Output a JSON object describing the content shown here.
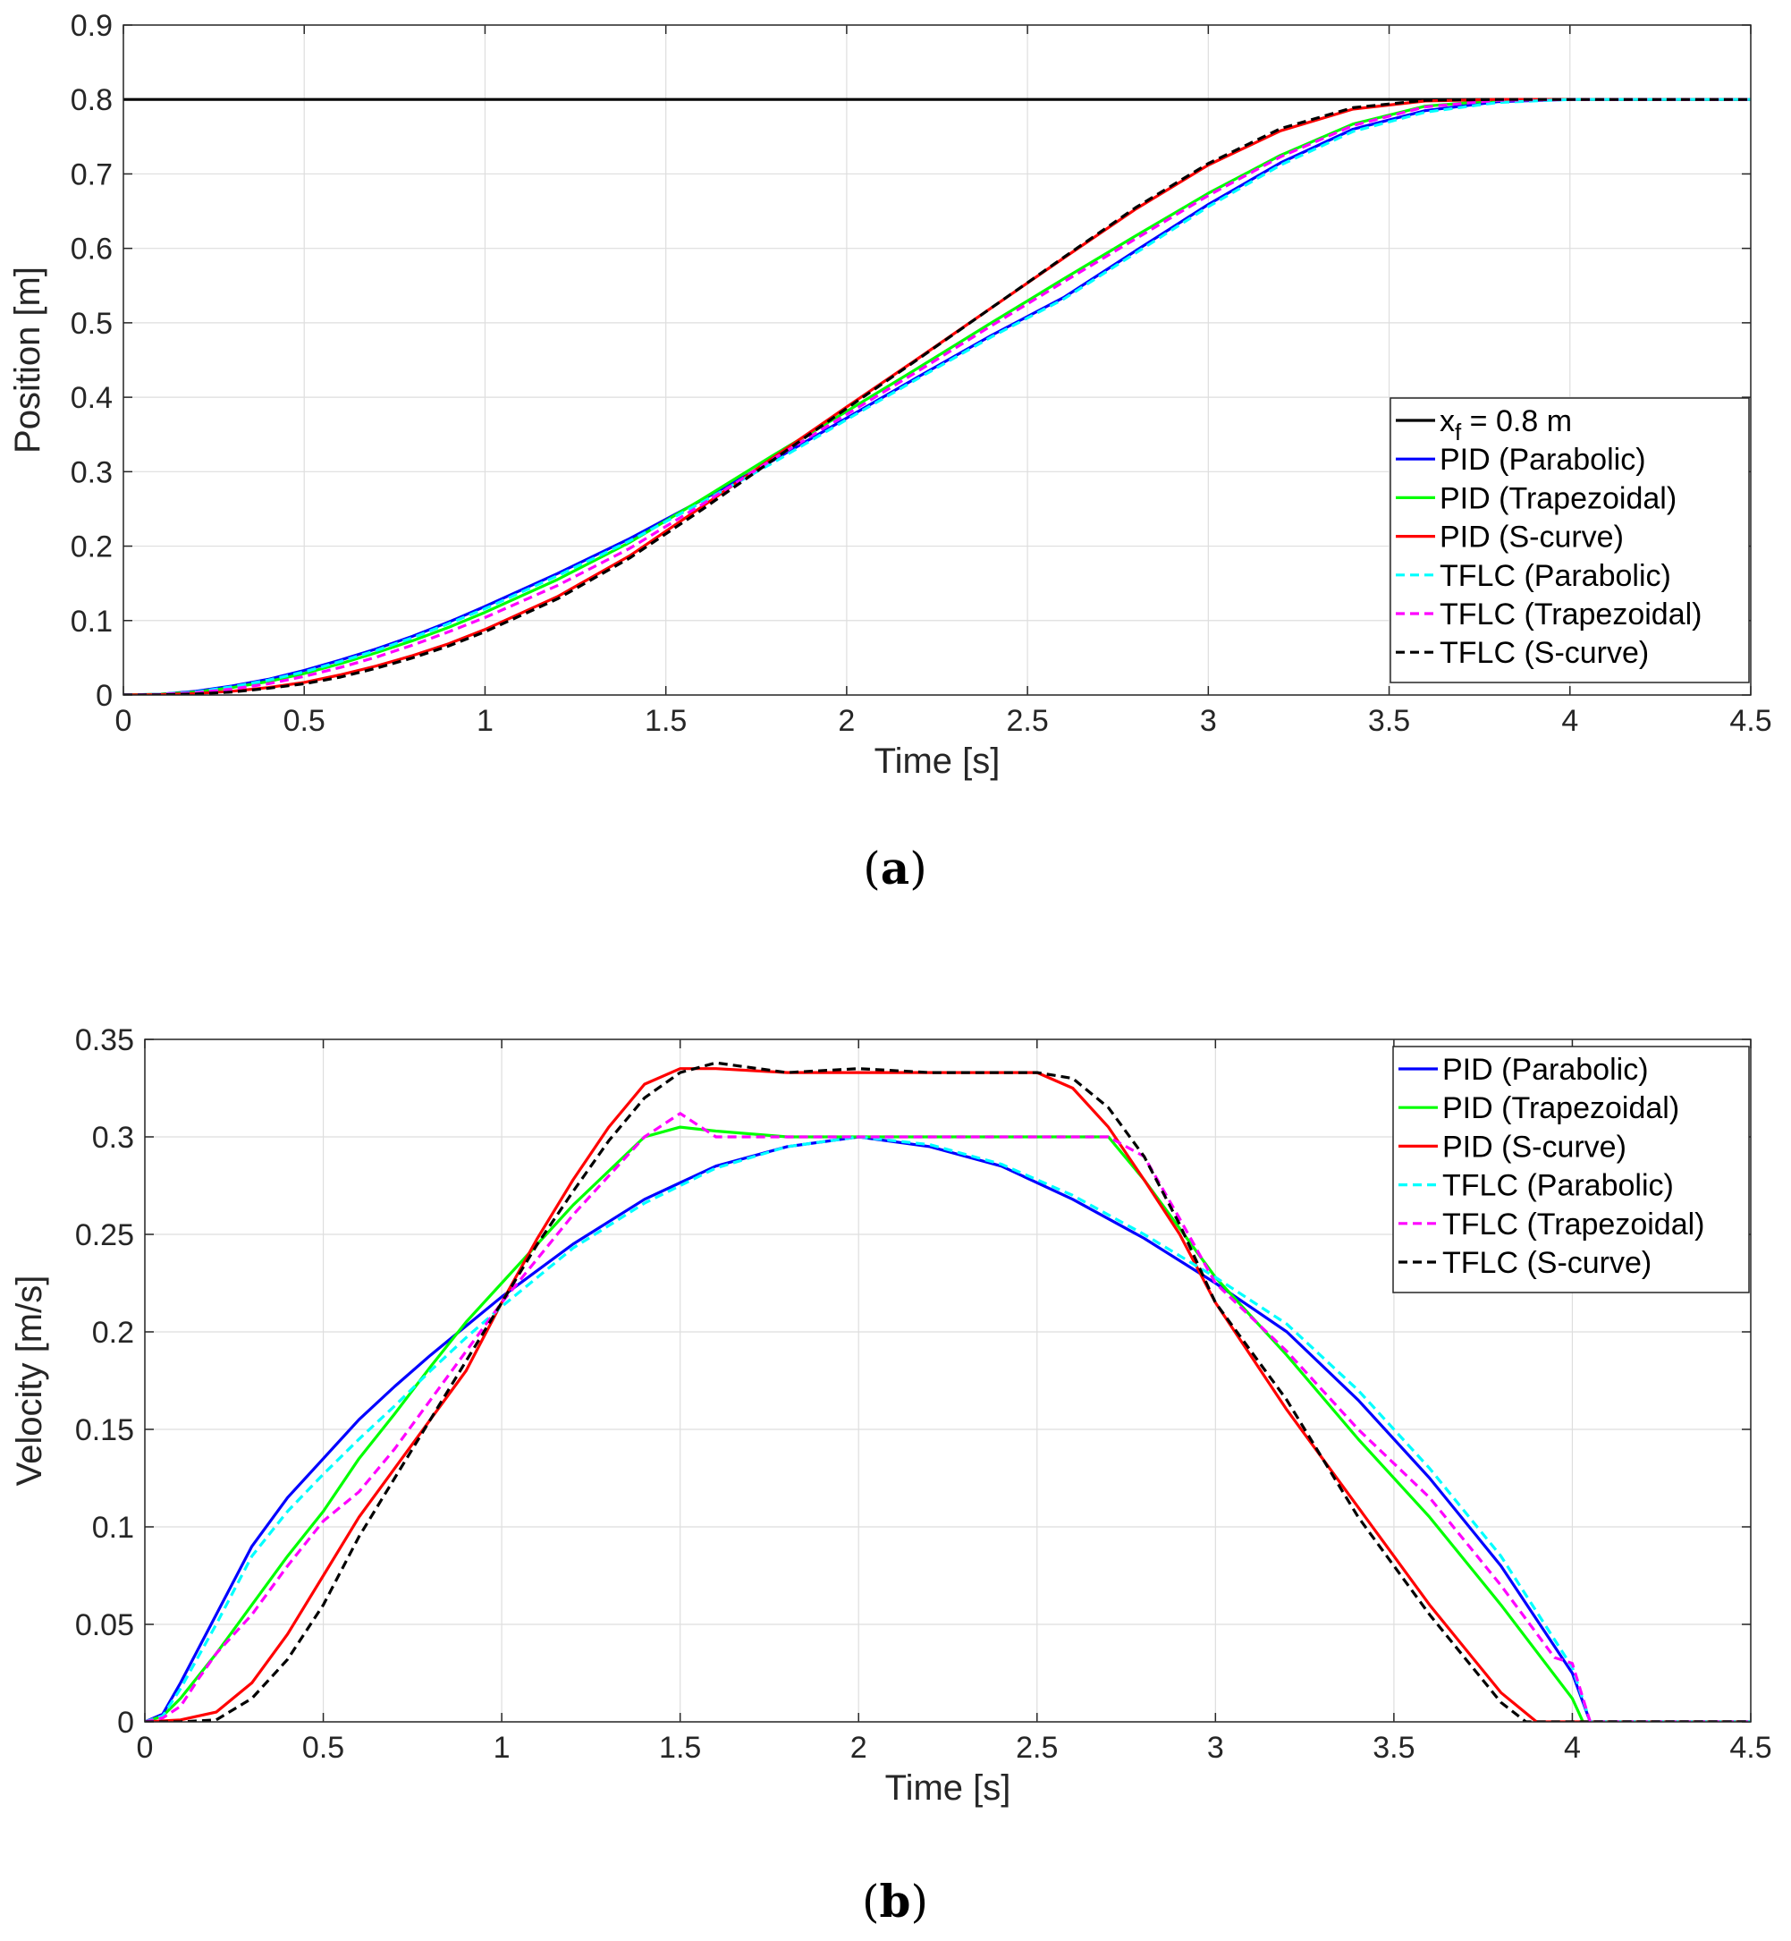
{
  "colors": {
    "reference": "#000000",
    "pid_parabolic": "#0000ff",
    "pid_trapezoidal": "#00ff00",
    "pid_scurve": "#ff0000",
    "tflc_parabolic": "#00ffff",
    "tflc_trapezoidal": "#ff00ff",
    "tflc_scurve": "#000000",
    "grid": "#dedede",
    "axis": "#262626"
  },
  "chart_data": [
    {
      "id": "a",
      "caption": "a",
      "type": "line",
      "xlabel": "Time [s]",
      "ylabel": "Position [m]",
      "xlim": [
        0,
        4.5
      ],
      "ylim": [
        0,
        0.9
      ],
      "xticks": [
        "0",
        "0.5",
        "1",
        "1.5",
        "2",
        "2.5",
        "3",
        "3.5",
        "4",
        "4.5"
      ],
      "yticks": [
        "0",
        "0.1",
        "0.2",
        "0.3",
        "0.4",
        "0.5",
        "0.6",
        "0.7",
        "0.8",
        "0.9"
      ],
      "grid": true,
      "legend_position": "bottom-right",
      "legend_reference": {
        "base": "x",
        "sub": "f",
        "rest": " = 0.8 m"
      },
      "series": [
        {
          "name": "x_f = 0.8 m",
          "key": "reference",
          "dashed": false,
          "x": [
            0,
            4.5
          ],
          "y": [
            0.8,
            0.8
          ]
        },
        {
          "name": "PID (Parabolic)",
          "key": "pid_parabolic",
          "dashed": false,
          "x": [
            0,
            0.1,
            0.2,
            0.3,
            0.4,
            0.5,
            0.6,
            0.7,
            0.8,
            0.9,
            1.0,
            1.2,
            1.4,
            1.6,
            1.8,
            2.0,
            2.2,
            2.4,
            2.6,
            2.8,
            3.0,
            3.2,
            3.4,
            3.6,
            3.8,
            4.0,
            4.5
          ],
          "y": [
            0,
            0.001,
            0.005,
            0.012,
            0.021,
            0.033,
            0.047,
            0.062,
            0.079,
            0.098,
            0.119,
            0.163,
            0.21,
            0.262,
            0.316,
            0.372,
            0.428,
            0.483,
            0.534,
            0.597,
            0.659,
            0.715,
            0.76,
            0.785,
            0.797,
            0.8,
            0.8
          ]
        },
        {
          "name": "PID (Trapezoidal)",
          "key": "pid_trapezoidal",
          "dashed": false,
          "x": [
            0,
            0.1,
            0.2,
            0.3,
            0.4,
            0.5,
            0.6,
            0.7,
            0.8,
            0.9,
            1.0,
            1.2,
            1.4,
            1.6,
            1.8,
            2.0,
            2.2,
            2.4,
            2.6,
            2.8,
            3.0,
            3.2,
            3.4,
            3.6,
            3.8,
            4.0,
            4.5
          ],
          "y": [
            0,
            0.001,
            0.004,
            0.01,
            0.018,
            0.029,
            0.042,
            0.057,
            0.073,
            0.091,
            0.111,
            0.155,
            0.205,
            0.263,
            0.323,
            0.381,
            0.44,
            0.5,
            0.559,
            0.617,
            0.674,
            0.725,
            0.767,
            0.791,
            0.799,
            0.8,
            0.8
          ]
        },
        {
          "name": "PID (S-curve)",
          "key": "pid_scurve",
          "dashed": false,
          "x": [
            0,
            0.1,
            0.2,
            0.3,
            0.4,
            0.5,
            0.6,
            0.7,
            0.8,
            0.9,
            1.0,
            1.2,
            1.4,
            1.6,
            1.8,
            2.0,
            2.2,
            2.4,
            2.6,
            2.8,
            3.0,
            3.2,
            3.4,
            3.6,
            3.8,
            4.0,
            4.5
          ],
          "y": [
            0,
            0.0005,
            0.002,
            0.005,
            0.01,
            0.017,
            0.027,
            0.039,
            0.053,
            0.069,
            0.088,
            0.132,
            0.187,
            0.253,
            0.32,
            0.387,
            0.453,
            0.52,
            0.587,
            0.653,
            0.712,
            0.758,
            0.787,
            0.798,
            0.8,
            0.8,
            0.8
          ]
        },
        {
          "name": "TFLC (Parabolic)",
          "key": "tflc_parabolic",
          "dashed": true,
          "x": [
            0,
            0.1,
            0.2,
            0.3,
            0.4,
            0.5,
            0.6,
            0.7,
            0.8,
            0.9,
            1.0,
            1.2,
            1.4,
            1.6,
            1.8,
            2.0,
            2.2,
            2.4,
            2.6,
            2.8,
            3.0,
            3.2,
            3.4,
            3.6,
            3.8,
            4.0,
            4.5
          ],
          "y": [
            0,
            0.001,
            0.004,
            0.011,
            0.02,
            0.031,
            0.045,
            0.06,
            0.077,
            0.096,
            0.116,
            0.16,
            0.207,
            0.259,
            0.313,
            0.37,
            0.426,
            0.481,
            0.532,
            0.594,
            0.656,
            0.712,
            0.757,
            0.783,
            0.796,
            0.8,
            0.8
          ]
        },
        {
          "name": "TFLC (Trapezoidal)",
          "key": "tflc_trapezoidal",
          "dashed": true,
          "x": [
            0,
            0.1,
            0.2,
            0.3,
            0.4,
            0.5,
            0.6,
            0.7,
            0.8,
            0.9,
            1.0,
            1.2,
            1.4,
            1.6,
            1.8,
            2.0,
            2.2,
            2.4,
            2.6,
            2.8,
            3.0,
            3.2,
            3.4,
            3.6,
            3.8,
            4.0,
            4.5
          ],
          "y": [
            0,
            0.0008,
            0.003,
            0.008,
            0.015,
            0.025,
            0.037,
            0.051,
            0.067,
            0.085,
            0.104,
            0.147,
            0.197,
            0.256,
            0.318,
            0.377,
            0.436,
            0.496,
            0.555,
            0.613,
            0.671,
            0.723,
            0.765,
            0.79,
            0.799,
            0.8,
            0.8
          ]
        },
        {
          "name": "TFLC (S-curve)",
          "key": "tflc_scurve",
          "dashed": true,
          "x": [
            0,
            0.1,
            0.2,
            0.3,
            0.4,
            0.5,
            0.6,
            0.7,
            0.8,
            0.9,
            1.0,
            1.2,
            1.4,
            1.6,
            1.8,
            2.0,
            2.2,
            2.4,
            2.6,
            2.8,
            3.0,
            3.2,
            3.4,
            3.6,
            3.8,
            4.0,
            4.5
          ],
          "y": [
            0,
            0.0003,
            0.0015,
            0.004,
            0.009,
            0.015,
            0.024,
            0.036,
            0.05,
            0.066,
            0.085,
            0.129,
            0.184,
            0.249,
            0.317,
            0.385,
            0.452,
            0.52,
            0.588,
            0.655,
            0.714,
            0.761,
            0.789,
            0.799,
            0.8,
            0.8,
            0.8
          ]
        }
      ]
    },
    {
      "id": "b",
      "caption": "b",
      "type": "line",
      "xlabel": "Time [s]",
      "ylabel": "Velocity [m/s]",
      "xlim": [
        0,
        4.5
      ],
      "ylim": [
        0,
        0.35
      ],
      "xticks": [
        "0",
        "0.5",
        "1",
        "1.5",
        "2",
        "2.5",
        "3",
        "3.5",
        "4",
        "4.5"
      ],
      "yticks": [
        "0",
        "0.05",
        "0.1",
        "0.15",
        "0.2",
        "0.25",
        "0.3",
        "0.35"
      ],
      "grid": true,
      "legend_position": "top-right",
      "series": [
        {
          "name": "PID (Parabolic)",
          "key": "pid_parabolic",
          "dashed": false,
          "x": [
            0,
            0.05,
            0.1,
            0.2,
            0.3,
            0.4,
            0.5,
            0.6,
            0.7,
            0.8,
            0.9,
            1.0,
            1.2,
            1.4,
            1.6,
            1.8,
            2.0,
            2.2,
            2.4,
            2.6,
            2.8,
            3.0,
            3.2,
            3.4,
            3.6,
            3.8,
            4.0,
            4.05,
            4.5
          ],
          "y": [
            0,
            0.004,
            0.02,
            0.055,
            0.09,
            0.115,
            0.135,
            0.155,
            0.172,
            0.188,
            0.203,
            0.218,
            0.245,
            0.268,
            0.285,
            0.295,
            0.3,
            0.295,
            0.285,
            0.268,
            0.248,
            0.225,
            0.2,
            0.165,
            0.125,
            0.08,
            0.025,
            0,
            0
          ]
        },
        {
          "name": "PID (Trapezoidal)",
          "key": "pid_trapezoidal",
          "dashed": false,
          "x": [
            0,
            0.05,
            0.1,
            0.2,
            0.3,
            0.4,
            0.5,
            0.6,
            0.7,
            0.8,
            0.9,
            1.0,
            1.2,
            1.4,
            1.5,
            1.6,
            1.8,
            2.0,
            2.2,
            2.4,
            2.6,
            2.7,
            2.8,
            3.0,
            3.2,
            3.4,
            3.6,
            3.8,
            4.0,
            4.03,
            4.5
          ],
          "y": [
            0,
            0.003,
            0.012,
            0.035,
            0.06,
            0.085,
            0.108,
            0.135,
            0.158,
            0.182,
            0.205,
            0.225,
            0.265,
            0.3,
            0.305,
            0.303,
            0.3,
            0.3,
            0.3,
            0.3,
            0.3,
            0.3,
            0.278,
            0.228,
            0.188,
            0.145,
            0.105,
            0.06,
            0.012,
            0,
            0
          ]
        },
        {
          "name": "PID (S-curve)",
          "key": "pid_scurve",
          "dashed": false,
          "x": [
            0,
            0.1,
            0.2,
            0.3,
            0.4,
            0.5,
            0.6,
            0.7,
            0.8,
            0.9,
            1.0,
            1.1,
            1.2,
            1.3,
            1.4,
            1.5,
            1.6,
            1.8,
            2.0,
            2.2,
            2.4,
            2.5,
            2.6,
            2.7,
            2.8,
            2.9,
            3.0,
            3.2,
            3.4,
            3.6,
            3.8,
            3.9,
            4.5
          ],
          "y": [
            0,
            0.001,
            0.005,
            0.02,
            0.045,
            0.075,
            0.105,
            0.13,
            0.155,
            0.18,
            0.215,
            0.248,
            0.278,
            0.305,
            0.327,
            0.335,
            0.335,
            0.333,
            0.333,
            0.333,
            0.333,
            0.333,
            0.325,
            0.305,
            0.278,
            0.25,
            0.215,
            0.16,
            0.11,
            0.06,
            0.015,
            0,
            0
          ]
        },
        {
          "name": "TFLC (Parabolic)",
          "key": "tflc_parabolic",
          "dashed": true,
          "x": [
            0,
            0.05,
            0.1,
            0.2,
            0.3,
            0.4,
            0.5,
            0.6,
            0.7,
            0.8,
            0.9,
            1.0,
            1.2,
            1.4,
            1.6,
            1.8,
            2.0,
            2.2,
            2.4,
            2.6,
            2.8,
            3.0,
            3.2,
            3.4,
            3.6,
            3.8,
            4.0,
            4.05,
            4.5
          ],
          "y": [
            0,
            0.003,
            0.017,
            0.05,
            0.085,
            0.108,
            0.127,
            0.145,
            0.162,
            0.18,
            0.197,
            0.213,
            0.243,
            0.266,
            0.284,
            0.295,
            0.3,
            0.296,
            0.286,
            0.27,
            0.25,
            0.228,
            0.204,
            0.17,
            0.13,
            0.085,
            0.028,
            0,
            0
          ]
        },
        {
          "name": "TFLC (Trapezoidal)",
          "key": "tflc_trapezoidal",
          "dashed": true,
          "x": [
            0,
            0.05,
            0.1,
            0.15,
            0.2,
            0.3,
            0.4,
            0.5,
            0.6,
            0.7,
            0.8,
            0.9,
            1.0,
            1.2,
            1.4,
            1.5,
            1.6,
            1.8,
            2.0,
            2.2,
            2.4,
            2.6,
            2.7,
            2.8,
            2.9,
            3.0,
            3.2,
            3.4,
            3.6,
            3.8,
            3.95,
            4.0,
            4.05,
            4.5
          ],
          "y": [
            0,
            0.002,
            0.008,
            0.022,
            0.035,
            0.055,
            0.08,
            0.103,
            0.118,
            0.14,
            0.165,
            0.19,
            0.215,
            0.26,
            0.3,
            0.312,
            0.3,
            0.3,
            0.3,
            0.3,
            0.3,
            0.3,
            0.3,
            0.29,
            0.258,
            0.225,
            0.19,
            0.15,
            0.115,
            0.07,
            0.033,
            0.03,
            0,
            0
          ]
        },
        {
          "name": "TFLC (S-curve)",
          "key": "tflc_scurve",
          "dashed": true,
          "x": [
            0,
            0.1,
            0.2,
            0.3,
            0.4,
            0.5,
            0.6,
            0.7,
            0.8,
            0.9,
            1.0,
            1.1,
            1.2,
            1.3,
            1.4,
            1.5,
            1.6,
            1.8,
            2.0,
            2.2,
            2.4,
            2.5,
            2.6,
            2.7,
            2.8,
            2.9,
            3.0,
            3.2,
            3.4,
            3.6,
            3.8,
            3.87,
            4.5
          ],
          "y": [
            0,
            0,
            0.001,
            0.012,
            0.032,
            0.06,
            0.095,
            0.125,
            0.155,
            0.185,
            0.215,
            0.245,
            0.272,
            0.298,
            0.32,
            0.333,
            0.338,
            0.333,
            0.335,
            0.333,
            0.333,
            0.333,
            0.33,
            0.315,
            0.29,
            0.255,
            0.215,
            0.165,
            0.105,
            0.055,
            0.01,
            0,
            0
          ]
        }
      ]
    }
  ]
}
